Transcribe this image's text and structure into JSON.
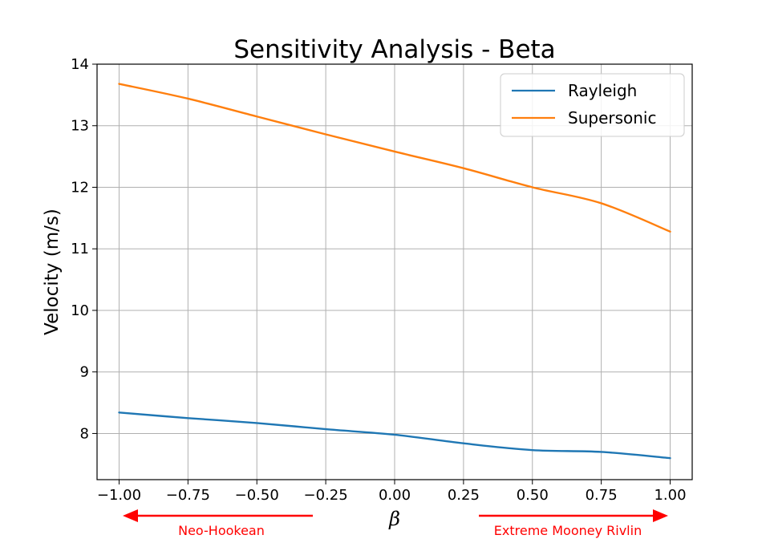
{
  "chart_data": {
    "type": "line",
    "title": "Sensitivity Analysis - Beta",
    "xlabel": "β",
    "ylabel": "Velocity (m/s)",
    "xlim": [
      -1.08,
      1.08
    ],
    "ylim": [
      7.25,
      14.0
    ],
    "xticks": [
      -1.0,
      -0.75,
      -0.5,
      -0.25,
      0.0,
      0.25,
      0.5,
      0.75,
      1.0
    ],
    "xtick_labels": [
      "−1.00",
      "−0.75",
      "−0.50",
      "−0.25",
      "0.00",
      "0.25",
      "0.50",
      "0.75",
      "1.00"
    ],
    "yticks": [
      8,
      9,
      10,
      11,
      12,
      13,
      14
    ],
    "ytick_labels": [
      "8",
      "9",
      "10",
      "11",
      "12",
      "13",
      "14"
    ],
    "grid": true,
    "legend_position": "top-right",
    "series": [
      {
        "name": "Rayleigh",
        "color": "#1f77b4",
        "x": [
          -1.0,
          -0.75,
          -0.5,
          -0.25,
          0.0,
          0.25,
          0.5,
          0.75,
          1.0
        ],
        "y": [
          8.34,
          8.25,
          8.17,
          8.07,
          7.98,
          7.84,
          7.73,
          7.7,
          7.6
        ]
      },
      {
        "name": "Supersonic",
        "color": "#ff7f0e",
        "x": [
          -1.0,
          -0.75,
          -0.5,
          -0.25,
          0.0,
          0.25,
          0.5,
          0.75,
          1.0
        ],
        "y": [
          13.68,
          13.44,
          13.15,
          12.86,
          12.58,
          12.31,
          12.0,
          11.74,
          11.28
        ]
      }
    ],
    "annotations": [
      {
        "text": "Neo-Hookean",
        "direction": "left",
        "color": "#ff0000"
      },
      {
        "text": "Extreme Mooney Rivlin",
        "direction": "right",
        "color": "#ff0000"
      }
    ]
  }
}
